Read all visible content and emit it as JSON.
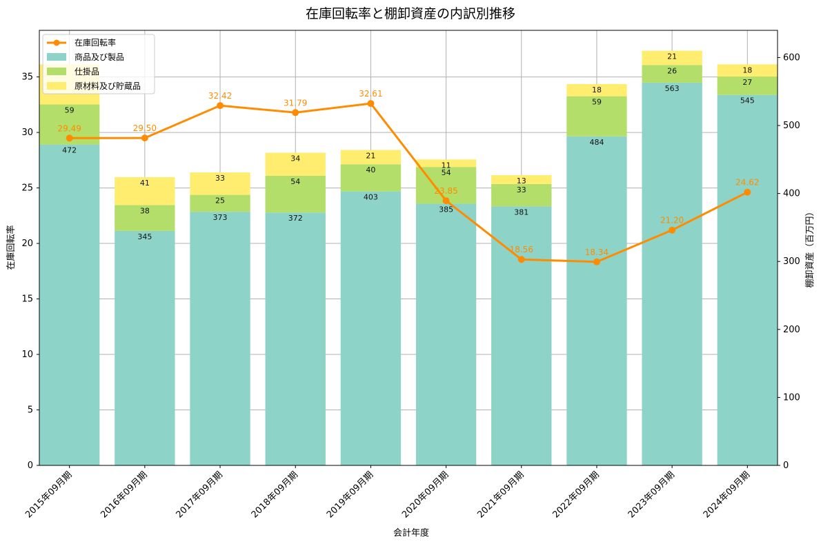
{
  "chart_data": {
    "type": "bar",
    "subtype": "stacked-bar-with-line-dual-axis",
    "title": "在庫回転率と棚卸資産の内訳別推移",
    "xlabel": "会計年度",
    "ylabel_left": "在庫回転率",
    "ylabel_right": "棚卸資産（百万円）",
    "ylim_left": [
      0,
      39.2
    ],
    "ylim_right": [
      0,
      640
    ],
    "yticks_left": [
      0,
      5,
      10,
      15,
      20,
      25,
      30,
      35
    ],
    "yticks_right": [
      0,
      100,
      200,
      300,
      400,
      500,
      600
    ],
    "grid": true,
    "legend_position": "upper-left",
    "categories": [
      "2015年09月期",
      "2016年09月期",
      "2017年09月期",
      "2018年09月期",
      "2019年09月期",
      "2020年09月期",
      "2021年09月期",
      "2022年09月期",
      "2023年09月期",
      "2024年09月期"
    ],
    "bar_series": [
      {
        "name": "商品及び製品",
        "color": "#8dd3c7",
        "values": [
          472,
          345,
          373,
          372,
          403,
          385,
          381,
          484,
          563,
          545
        ]
      },
      {
        "name": "仕掛品",
        "color": "#b3de69",
        "values": [
          59,
          38,
          25,
          54,
          40,
          54,
          33,
          59,
          26,
          27
        ]
      },
      {
        "name": "原材料及び貯蔵品",
        "color": "#ffed6f",
        "values": [
          59,
          41,
          33,
          34,
          21,
          11,
          13,
          18,
          21,
          18
        ]
      }
    ],
    "bar_labels": [
      [
        "472",
        "59",
        ""
      ],
      [
        "345",
        "38",
        "41"
      ],
      [
        "373",
        "25",
        "33"
      ],
      [
        "372",
        "54",
        "34"
      ],
      [
        "403",
        "40",
        "21"
      ],
      [
        "385",
        "54",
        "11"
      ],
      [
        "381",
        "33",
        "13"
      ],
      [
        "484",
        "59",
        "18"
      ],
      [
        "563",
        "26",
        "21"
      ],
      [
        "545",
        "27",
        "18"
      ]
    ],
    "line_series": {
      "name": "在庫回転率",
      "color": "#ff8c00",
      "values": [
        29.49,
        29.5,
        32.42,
        31.79,
        32.61,
        23.85,
        18.56,
        18.34,
        21.2,
        24.62
      ],
      "labels": [
        "29.49",
        "29.50",
        "32.42",
        "31.79",
        "32.61",
        "23.85",
        "18.56",
        "18.34",
        "21.20",
        "24.62"
      ]
    }
  }
}
